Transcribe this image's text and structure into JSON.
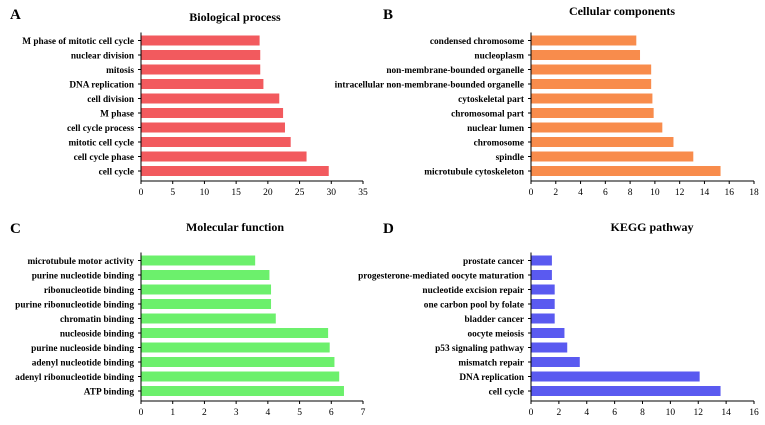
{
  "chart_data": [
    {
      "type": "bar",
      "orientation": "horizontal",
      "panel": "A",
      "title": "Biological process",
      "color": "#f25a5e",
      "categories": [
        "cell cycle",
        "cell cycle phase",
        "mitotic cell cycle",
        "cell cycle process",
        "M phase",
        "cell division",
        "DNA replication",
        "mitosis",
        "nuclear division",
        "M phase of mitotic cell cycle"
      ],
      "values": [
        29.6,
        26.1,
        23.6,
        22.7,
        22.4,
        21.8,
        19.3,
        18.8,
        18.8,
        18.7
      ],
      "xlim": [
        0,
        35
      ],
      "xticks": [
        0,
        5,
        10,
        15,
        20,
        25,
        30,
        35
      ],
      "xlabel": "",
      "ylabel": "",
      "grid": false
    },
    {
      "type": "bar",
      "orientation": "horizontal",
      "panel": "B",
      "title": "Cellular components",
      "color": "#f88c4c",
      "categories": [
        "microtubule cytoskeleton",
        "spindle",
        "chromosome",
        "nuclear lumen",
        "chromosomal part",
        "cytoskeletal part",
        "intracellular non-membrane-bounded organelle",
        "non-membrane-bounded organelle",
        "nucleoplasm",
        "condensed chromosome"
      ],
      "values": [
        15.3,
        13.1,
        11.5,
        10.6,
        9.9,
        9.8,
        9.7,
        9.7,
        8.8,
        8.5
      ],
      "xlim": [
        0,
        18
      ],
      "xticks": [
        0,
        2,
        4,
        6,
        8,
        10,
        12,
        14,
        16,
        18
      ],
      "xlabel": "",
      "ylabel": "",
      "grid": false
    },
    {
      "type": "bar",
      "orientation": "horizontal",
      "panel": "C",
      "title": "Molecular function",
      "color": "#6cf06c",
      "categories": [
        "ATP binding",
        "adenyl ribonucleotide binding",
        "adenyl nucleotide binding",
        "purine nucleoside binding",
        "nucleoside binding",
        "chromatin binding",
        "purine ribonucleotide binding",
        "ribonucleotide binding",
        "purine nucleotide binding",
        "microtubule motor activity"
      ],
      "values": [
        6.4,
        6.25,
        6.1,
        5.95,
        5.9,
        4.25,
        4.1,
        4.1,
        4.05,
        3.6
      ],
      "xlim": [
        0,
        7
      ],
      "xticks": [
        0,
        1,
        2,
        3,
        4,
        5,
        6,
        7
      ],
      "xlabel": "",
      "ylabel": "",
      "grid": false
    },
    {
      "type": "bar",
      "orientation": "horizontal",
      "panel": "D",
      "title": "KEGG pathway",
      "color": "#5a5af0",
      "categories": [
        "cell cycle",
        "DNA replication",
        "mismatch repair",
        "p53 signaling pathway",
        "oocyte meiosis",
        "bladder cancer",
        "one carbon pool by folate",
        "nucleotide excision repair",
        "progesterone-mediated oocyte maturation",
        "prostate cancer"
      ],
      "values": [
        13.6,
        12.1,
        3.5,
        2.6,
        2.4,
        1.7,
        1.7,
        1.7,
        1.5,
        1.5
      ],
      "xlim": [
        0,
        16
      ],
      "xticks": [
        0,
        2,
        4,
        6,
        8,
        10,
        12,
        14,
        16
      ],
      "xlabel": "",
      "ylabel": "",
      "grid": false
    }
  ]
}
